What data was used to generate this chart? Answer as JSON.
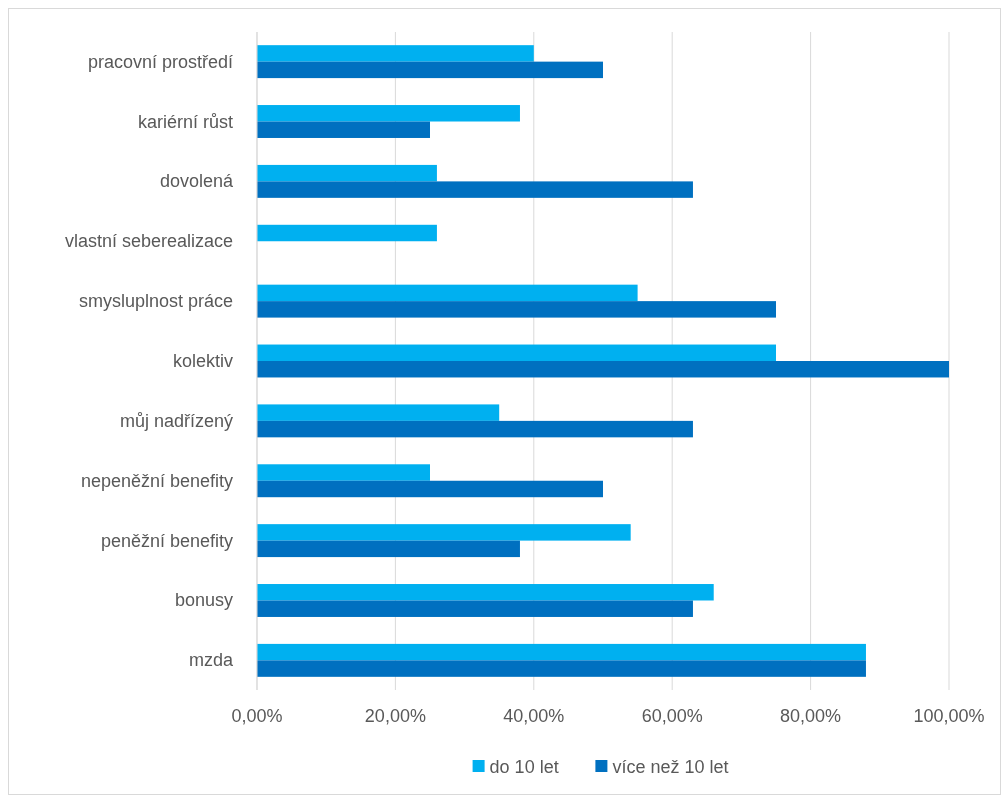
{
  "chart_data": {
    "type": "bar",
    "orientation": "horizontal",
    "categories": [
      "pracovní prostředí",
      "kariérní růst",
      "dovolená",
      "vlastní seberealizace",
      "smysluplnost práce",
      "kolektiv",
      "můj nadřízený",
      "nepeněžní benefity",
      "peněžní benefity",
      "bonusy",
      "mzda"
    ],
    "series": [
      {
        "name": "do 10 let",
        "color": "#00b0f0",
        "values": [
          40,
          38,
          26,
          26,
          55,
          75,
          35,
          25,
          54,
          66,
          88
        ]
      },
      {
        "name": "více než 10 let",
        "color": "#0070c0",
        "values": [
          50,
          25,
          63,
          0,
          75,
          100,
          63,
          50,
          38,
          63,
          88
        ]
      }
    ],
    "xlim": [
      0,
      100
    ],
    "xticks": [
      {
        "value": 0,
        "label": "0,00%"
      },
      {
        "value": 20,
        "label": "20,00%"
      },
      {
        "value": 40,
        "label": "40,00%"
      },
      {
        "value": 60,
        "label": "60,00%"
      },
      {
        "value": 80,
        "label": "80,00%"
      },
      {
        "value": 100,
        "label": "100,00%"
      }
    ],
    "grid": "x",
    "legend": "bottom"
  }
}
